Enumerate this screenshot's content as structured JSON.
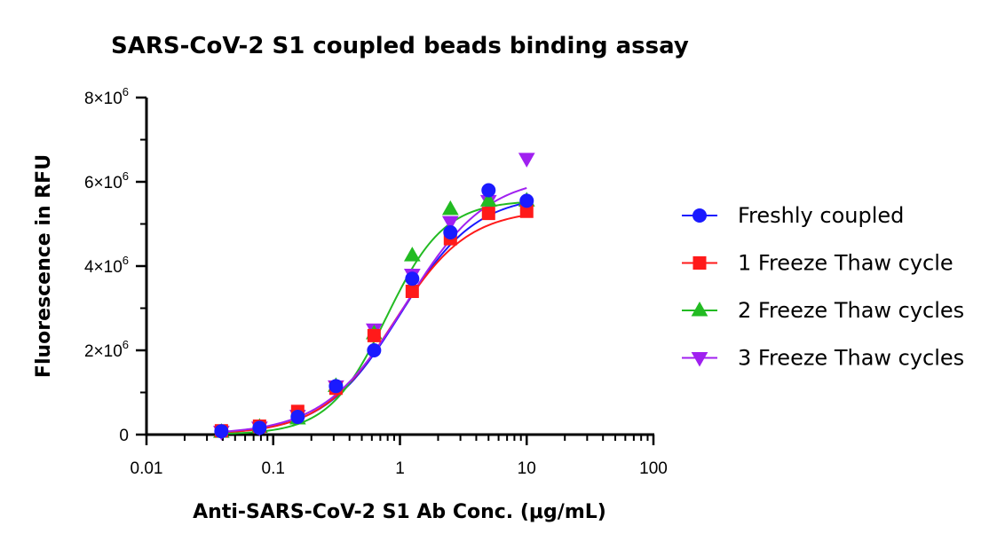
{
  "chart_data": {
    "type": "scatter",
    "title": "SARS-CoV-2 S1 coupled beads binding assay",
    "xlabel": "Anti-SARS-CoV-2 S1 Ab Conc. (μg/mL)",
    "ylabel": "Fluorescence in RFU",
    "x_scale": "log",
    "xlim": [
      0.01,
      100
    ],
    "ylim": [
      0,
      8000000
    ],
    "x_ticks": [
      {
        "value": 0.01,
        "label": "0.01"
      },
      {
        "value": 0.1,
        "label": "0.1"
      },
      {
        "value": 1,
        "label": "1"
      },
      {
        "value": 10,
        "label": "10"
      },
      {
        "value": 100,
        "label": "100"
      }
    ],
    "y_ticks": [
      {
        "value": 0,
        "mantissa": "0",
        "exp": ""
      },
      {
        "value": 2000000,
        "mantissa": "2×10",
        "exp": "6"
      },
      {
        "value": 4000000,
        "mantissa": "4×10",
        "exp": "6"
      },
      {
        "value": 6000000,
        "mantissa": "6×10",
        "exp": "6"
      },
      {
        "value": 8000000,
        "mantissa": "8×10",
        "exp": "6"
      }
    ],
    "grid": false,
    "legend_position": "right",
    "x": [
      0.039,
      0.078,
      0.156,
      0.3125,
      0.625,
      1.25,
      2.5,
      5,
      10
    ],
    "series": [
      {
        "name": "Freshly coupled",
        "marker": "circle",
        "color": "#1a1aff",
        "values": [
          80000,
          160000,
          420000,
          1150000,
          2000000,
          3700000,
          4800000,
          5800000,
          5550000
        ],
        "fit": {
          "bottom": 0,
          "top": 5700000,
          "ec50": 1.0,
          "hill": 1.45
        }
      },
      {
        "name": "1 Freeze Thaw cycle",
        "marker": "square",
        "color": "#ff1a1a",
        "values": [
          90000,
          200000,
          550000,
          1100000,
          2350000,
          3400000,
          4650000,
          5250000,
          5300000
        ],
        "fit": {
          "bottom": 0,
          "top": 5350000,
          "ec50": 0.9,
          "hill": 1.5
        }
      },
      {
        "name": "2 Freeze Thaw cycles",
        "marker": "triangle-up",
        "color": "#22bb22",
        "values": [
          60000,
          180000,
          380000,
          1150000,
          2400000,
          4250000,
          5350000,
          5550000,
          5550000
        ],
        "fit": {
          "bottom": 0,
          "top": 5560000,
          "ec50": 0.78,
          "hill": 1.9
        }
      },
      {
        "name": "3 Freeze Thaw cycles",
        "marker": "triangle-down",
        "color": "#a020f0",
        "values": [
          70000,
          170000,
          450000,
          1150000,
          2500000,
          3800000,
          5050000,
          5550000,
          6550000
        ],
        "fit": {
          "bottom": 0,
          "top": 6150000,
          "ec50": 1.1,
          "hill": 1.35
        }
      }
    ]
  }
}
